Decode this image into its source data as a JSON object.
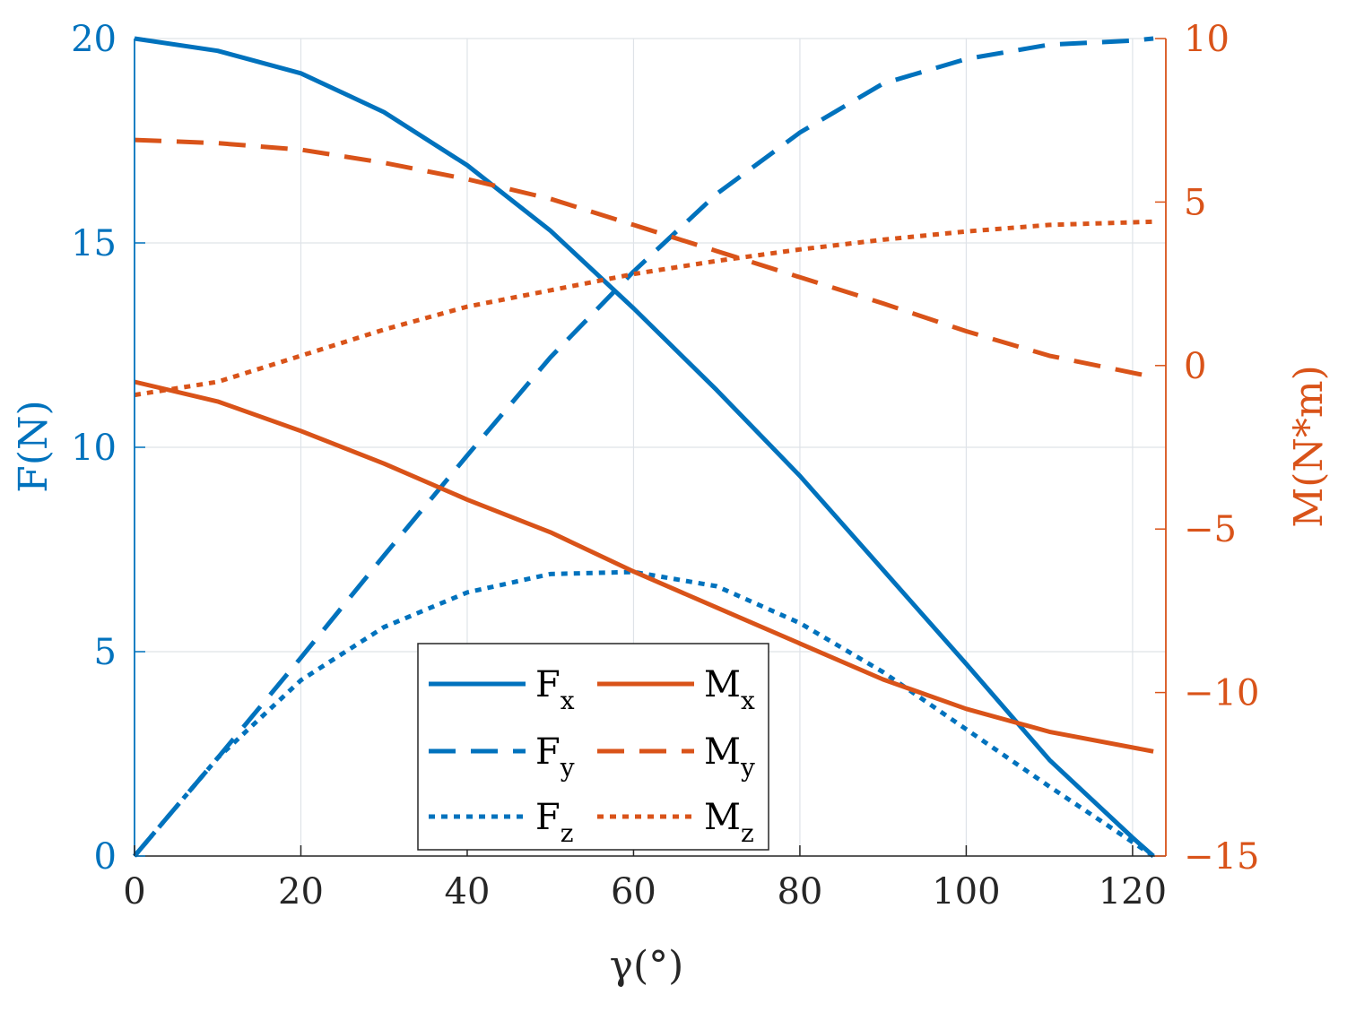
{
  "chart_data": {
    "type": "line",
    "xlabel": "γ(°)",
    "ylabel_left": "F(N)",
    "ylabel_right": "M(N*m)",
    "xlim": [
      0,
      124
    ],
    "ylim_left": [
      0,
      20
    ],
    "ylim_right": [
      -15,
      10
    ],
    "x_ticks": [
      0,
      20,
      40,
      60,
      80,
      100,
      120
    ],
    "y_left_ticks": [
      0,
      5,
      10,
      15,
      20
    ],
    "y_right_ticks": [
      -15,
      -10,
      -5,
      0,
      5,
      10
    ],
    "y_right_tick_labels": [
      "−15",
      "−10",
      "−5",
      "0",
      "5",
      "10"
    ],
    "grid": true,
    "legend_position": "bottom-center",
    "colors": {
      "force": "#0072BD",
      "moment": "#D95319"
    },
    "series": [
      {
        "name": "Fx",
        "label_base": "F",
        "label_sub": "x",
        "axis": "left",
        "style": "solid",
        "x": [
          0,
          10,
          20,
          30,
          40,
          50,
          60,
          70,
          80,
          90,
          100,
          110,
          120,
          122.5
        ],
        "y": [
          20,
          19.7,
          19.15,
          18.2,
          16.9,
          15.3,
          13.4,
          11.4,
          9.3,
          7.0,
          4.7,
          2.35,
          0.45,
          0
        ]
      },
      {
        "name": "Fy",
        "label_base": "F",
        "label_sub": "y",
        "axis": "left",
        "style": "dashed",
        "x": [
          0,
          10,
          20,
          30,
          40,
          50,
          60,
          70,
          80,
          90,
          100,
          110,
          120,
          122.5
        ],
        "y": [
          0,
          2.4,
          4.85,
          7.35,
          9.8,
          12.2,
          14.3,
          16.2,
          17.7,
          18.9,
          19.5,
          19.85,
          19.95,
          20
        ]
      },
      {
        "name": "Fz",
        "label_base": "F",
        "label_sub": "z",
        "axis": "left",
        "style": "dotted",
        "x": [
          0,
          10,
          20,
          30,
          40,
          50,
          60,
          70,
          80,
          90,
          100,
          110,
          122.5
        ],
        "y": [
          0,
          2.4,
          4.3,
          5.6,
          6.45,
          6.9,
          6.95,
          6.6,
          5.7,
          4.5,
          3.1,
          1.7,
          0
        ]
      },
      {
        "name": "Mx",
        "label_base": "M",
        "label_sub": "x",
        "axis": "right",
        "style": "solid",
        "x": [
          0,
          10,
          20,
          30,
          40,
          50,
          60,
          70,
          80,
          90,
          100,
          110,
          122.5
        ],
        "y": [
          -0.5,
          -1.1,
          -2.0,
          -3.0,
          -4.1,
          -5.1,
          -6.3,
          -7.4,
          -8.5,
          -9.6,
          -10.5,
          -11.2,
          -11.8
        ]
      },
      {
        "name": "My",
        "label_base": "M",
        "label_sub": "y",
        "axis": "right",
        "style": "dashed",
        "x": [
          0,
          10,
          20,
          30,
          40,
          50,
          60,
          70,
          80,
          90,
          100,
          110,
          122.5
        ],
        "y": [
          6.9,
          6.8,
          6.6,
          6.2,
          5.7,
          5.1,
          4.3,
          3.5,
          2.7,
          1.9,
          1.05,
          0.3,
          -0.35
        ]
      },
      {
        "name": "Mz",
        "label_base": "M",
        "label_sub": "z",
        "axis": "right",
        "style": "dotted",
        "x": [
          0,
          10,
          20,
          30,
          40,
          50,
          60,
          70,
          80,
          90,
          100,
          110,
          122.5
        ],
        "y": [
          -0.9,
          -0.5,
          0.3,
          1.1,
          1.8,
          2.3,
          2.8,
          3.2,
          3.55,
          3.85,
          4.1,
          4.3,
          4.4
        ]
      }
    ],
    "legend_layout": [
      [
        "Fx",
        "Mx"
      ],
      [
        "Fy",
        "My"
      ],
      [
        "Fz",
        "Mz"
      ]
    ]
  }
}
